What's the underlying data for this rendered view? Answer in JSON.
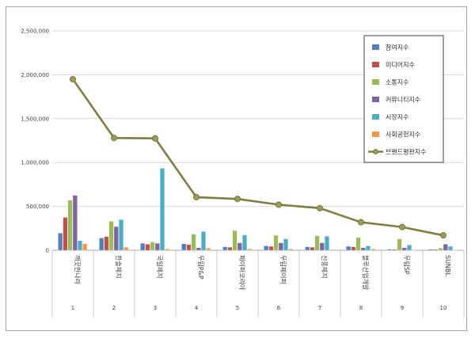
{
  "chart_data": {
    "type": "bar",
    "title": "",
    "xlabel": "",
    "ylabel": "",
    "ylim": [
      0,
      2500000
    ],
    "yticks": [
      0,
      500000,
      1000000,
      1500000,
      2000000,
      2500000
    ],
    "ytick_labels": [
      "0",
      "500,000",
      "1,000,000",
      "1,500,000",
      "2,000,000",
      "2,500,000"
    ],
    "grid": true,
    "legend_position": "right",
    "categories": [
      "깨끗한나라",
      "한솔제지",
      "국일제지",
      "무림P&P",
      "페이퍼코리아",
      "무림페이퍼",
      "신풍제지",
      "블루산업개발",
      "무림SP",
      "SUNBL"
    ],
    "category_numbers": [
      "1",
      "2",
      "3",
      "4",
      "5",
      "6",
      "7",
      "8",
      "9",
      "10"
    ],
    "series": [
      {
        "name": "참여지수",
        "color": "#4f81bd",
        "values": [
          195000,
          140000,
          80000,
          75000,
          40000,
          50000,
          40000,
          45000,
          12000,
          12000
        ]
      },
      {
        "name": "미디어지수",
        "color": "#c0504d",
        "values": [
          375000,
          155000,
          70000,
          65000,
          35000,
          45000,
          35000,
          40000,
          10000,
          10000
        ]
      },
      {
        "name": "소통지수",
        "color": "#9bbb59",
        "values": [
          570000,
          330000,
          95000,
          185000,
          225000,
          170000,
          165000,
          145000,
          130000,
          25000
        ]
      },
      {
        "name": "커뮤니티지수",
        "color": "#8064a2",
        "values": [
          625000,
          270000,
          80000,
          30000,
          85000,
          85000,
          85000,
          30000,
          30000,
          70000
        ]
      },
      {
        "name": "시장지수",
        "color": "#4bacc6",
        "values": [
          110000,
          350000,
          935000,
          215000,
          175000,
          130000,
          160000,
          50000,
          60000,
          45000
        ]
      },
      {
        "name": "사회공헌지수",
        "color": "#f79646",
        "values": [
          75000,
          35000,
          15000,
          25000,
          15000,
          15000,
          10000,
          15000,
          5000,
          5000
        ]
      }
    ],
    "line_series": {
      "name": "브랜드평판지수",
      "color": "#7f7f3f",
      "values": [
        1950000,
        1280000,
        1275000,
        605000,
        585000,
        520000,
        480000,
        320000,
        265000,
        170000
      ]
    }
  }
}
